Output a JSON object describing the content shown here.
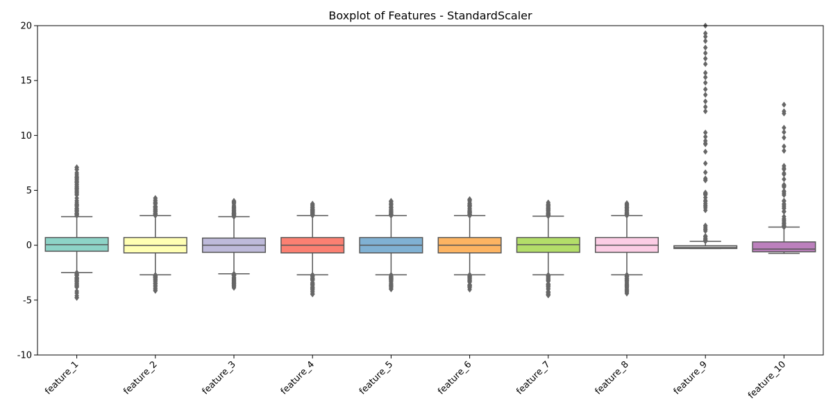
{
  "chart_data": {
    "type": "boxplot",
    "title": "Boxplot of Features - StandardScaler",
    "xlabel": "",
    "ylabel": "",
    "ylim": [
      -10,
      20
    ],
    "yticks": [
      -10,
      -5,
      0,
      5,
      10,
      15,
      20
    ],
    "grid": false,
    "categories": [
      "feature_1",
      "feature_2",
      "feature_3",
      "feature_4",
      "feature_5",
      "feature_6",
      "feature_7",
      "feature_8",
      "feature_9",
      "feature_10"
    ],
    "boxes": [
      {
        "name": "feature_1",
        "color": "#8dd3c7",
        "q1": -0.55,
        "median": 0.05,
        "q3": 0.7,
        "whisker_low": -2.5,
        "whisker_high": 2.6,
        "outliers_low_max": -2.5,
        "outliers_low_min": -5.0,
        "outliers_high_min": 2.6,
        "outliers_high_max": 7.1,
        "sparse_high": [
          3.7,
          4.6,
          4.9,
          5.1,
          5.4,
          5.7,
          6.0,
          6.3,
          6.6,
          6.9,
          7.1
        ]
      },
      {
        "name": "feature_2",
        "color": "#ffffb3",
        "q1": -0.7,
        "median": -0.02,
        "q3": 0.7,
        "whisker_low": -2.7,
        "whisker_high": 2.7,
        "outliers_low_max": -2.7,
        "outliers_low_min": -4.2,
        "outliers_high_min": 2.7,
        "outliers_high_max": 4.3,
        "sparse_high": []
      },
      {
        "name": "feature_3",
        "color": "#bebada",
        "q1": -0.65,
        "median": 0.0,
        "q3": 0.65,
        "whisker_low": -2.6,
        "whisker_high": 2.6,
        "outliers_low_max": -2.6,
        "outliers_low_min": -3.9,
        "outliers_high_min": 2.6,
        "outliers_high_max": 4.1,
        "sparse_high": []
      },
      {
        "name": "feature_4",
        "color": "#fb8072",
        "q1": -0.7,
        "median": 0.0,
        "q3": 0.7,
        "whisker_low": -2.7,
        "whisker_high": 2.7,
        "outliers_low_max": -2.7,
        "outliers_low_min": -4.5,
        "outliers_high_min": 2.7,
        "outliers_high_max": 3.8,
        "sparse_high": []
      },
      {
        "name": "feature_5",
        "color": "#80b1d3",
        "q1": -0.7,
        "median": 0.0,
        "q3": 0.7,
        "whisker_low": -2.7,
        "whisker_high": 2.7,
        "outliers_low_max": -2.7,
        "outliers_low_min": -4.1,
        "outliers_high_min": 2.7,
        "outliers_high_max": 4.2,
        "sparse_high": []
      },
      {
        "name": "feature_6",
        "color": "#fdb462",
        "q1": -0.7,
        "median": 0.0,
        "q3": 0.7,
        "whisker_low": -2.7,
        "whisker_high": 2.7,
        "outliers_low_max": -2.7,
        "outliers_low_min": -4.1,
        "outliers_high_min": 2.7,
        "outliers_high_max": 4.3,
        "sparse_high": []
      },
      {
        "name": "feature_7",
        "color": "#b3de69",
        "q1": -0.65,
        "median": 0.05,
        "q3": 0.7,
        "whisker_low": -2.7,
        "whisker_high": 2.65,
        "outliers_low_max": -2.7,
        "outliers_low_min": -4.6,
        "outliers_high_min": 2.65,
        "outliers_high_max": 3.9,
        "sparse_high": []
      },
      {
        "name": "feature_8",
        "color": "#fccde5",
        "q1": -0.65,
        "median": 0.0,
        "q3": 0.7,
        "whisker_low": -2.7,
        "whisker_high": 2.7,
        "outliers_low_max": -2.7,
        "outliers_low_min": -4.5,
        "outliers_high_min": 2.7,
        "outliers_high_max": 3.9,
        "sparse_high": []
      },
      {
        "name": "feature_9",
        "color": "#d9d9d9",
        "q1": -0.3,
        "median": -0.22,
        "q3": -0.05,
        "whisker_low": -0.3,
        "whisker_high": 0.35,
        "outliers_low_max": null,
        "outliers_low_min": null,
        "outliers_high_min": 0.35,
        "outliers_high_max": 11.5,
        "sparse_high": [
          12.2,
          12.6,
          13.1,
          13.7,
          14.2,
          14.8,
          15.3,
          15.7,
          16.5,
          17.0,
          17.5,
          18.0,
          18.6,
          19.0,
          19.3,
          20.0
        ]
      },
      {
        "name": "feature_10",
        "color": "#bc80bd",
        "q1": -0.6,
        "median": -0.35,
        "q3": 0.3,
        "whisker_low": -0.75,
        "whisker_high": 1.65,
        "outliers_low_max": null,
        "outliers_low_min": null,
        "outliers_high_min": 1.65,
        "outliers_high_max": 8.2,
        "sparse_high": [
          8.6,
          9.0,
          9.8,
          10.3,
          10.7,
          12.0,
          12.2,
          12.8
        ]
      }
    ]
  },
  "colors": {
    "box_edge": "#555555",
    "outlier": "#666666",
    "axis": "#000000"
  }
}
